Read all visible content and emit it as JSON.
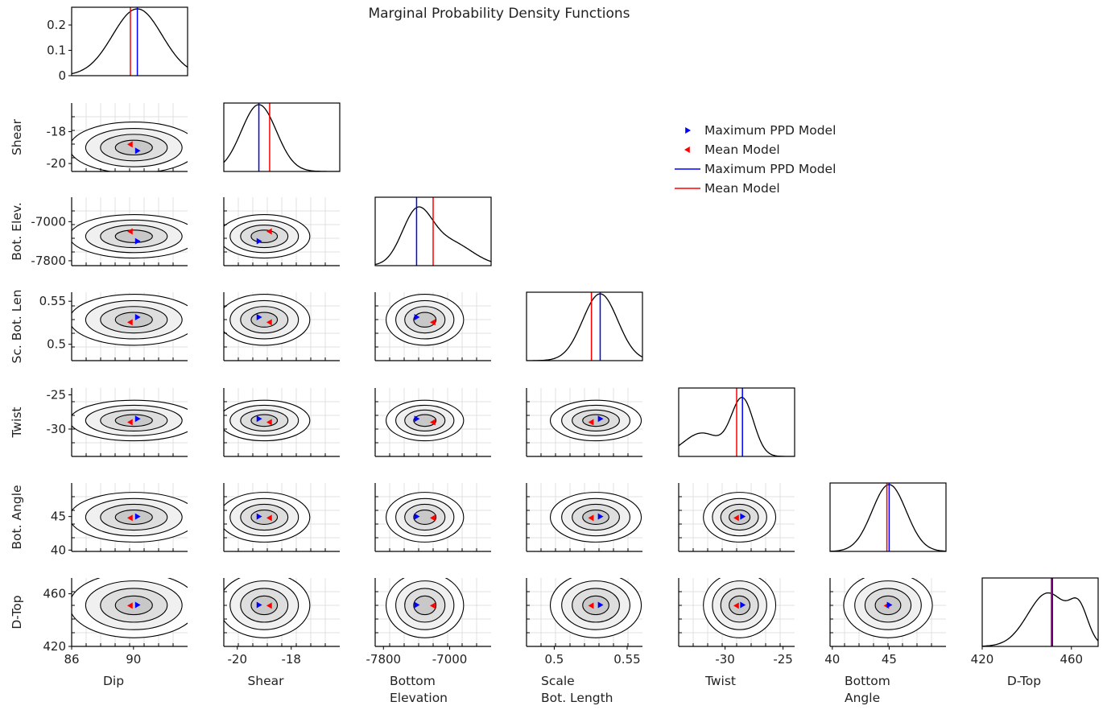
{
  "chart_data": {
    "type": "corner_plot",
    "title": "Marginal Probability Density Functions",
    "colors": {
      "max_ppd": "#0000ff",
      "mean": "#ff0000",
      "line": "#000000",
      "grid": "#d9d9d9"
    },
    "parameters": [
      {
        "key": "dip",
        "xlabel": [
          "Dip"
        ],
        "ylabel": "",
        "range": [
          86,
          93.5
        ],
        "xticks": [
          86,
          90
        ],
        "xtick_labels": [
          "86",
          "90"
        ],
        "max_ppd": 90.25,
        "mean": 89.8,
        "std": 1.6
      },
      {
        "key": "shear",
        "xlabel": [
          "Shear"
        ],
        "ylabel": "Shear",
        "range": [
          -20.5,
          -16.2
        ],
        "xticks": [
          -20,
          -18
        ],
        "xtick_labels": [
          "-20",
          "-18"
        ],
        "yticks": [
          -18,
          -20
        ],
        "ytick_labels": [
          "-18",
          "-20"
        ],
        "max_ppd": -19.2,
        "mean": -18.8,
        "std": 0.65
      },
      {
        "key": "bottom_elevation",
        "xlabel": [
          "Bottom",
          "Elevation"
        ],
        "ylabel": "Bot. Elev.",
        "range": [
          -7900,
          -6500
        ],
        "xticks": [
          -7800,
          -7000
        ],
        "xtick_labels": [
          "-7800",
          "-7000"
        ],
        "yticks": [
          -7000,
          -7800
        ],
        "ytick_labels": [
          "-7000",
          "-7800"
        ],
        "max_ppd": -7400,
        "mean": -7200,
        "std": 180
      },
      {
        "key": "scale_bottom_length",
        "xlabel": [
          "Scale",
          "Bot. Length"
        ],
        "ylabel": "Sc. Bot. Len",
        "range": [
          0.481,
          0.5605
        ],
        "xticks": [
          0.5,
          0.55
        ],
        "xtick_labels": [
          "0.5",
          "0.55"
        ],
        "yticks": [
          0.55,
          0.5
        ],
        "ytick_labels": [
          "0.55",
          "0.5"
        ],
        "max_ppd": 0.5315,
        "mean": 0.5255,
        "std": 0.012
      },
      {
        "key": "twist",
        "xlabel": [
          "Twist"
        ],
        "ylabel": "Twist",
        "range": [
          -34,
          -24
        ],
        "xticks": [
          -30,
          -25
        ],
        "xtick_labels": [
          "-30",
          "-25"
        ],
        "yticks": [
          -25,
          -30
        ],
        "ytick_labels": [
          "-25",
          "-30"
        ],
        "max_ppd": -28.5,
        "mean": -29,
        "std": 1.2
      },
      {
        "key": "bottom_angle",
        "xlabel": [
          "Bottom",
          "Angle"
        ],
        "ylabel": "Bot. Angle",
        "range": [
          39.8,
          50
        ],
        "xticks": [
          40,
          45
        ],
        "xtick_labels": [
          "40",
          "45"
        ],
        "yticks": [
          45,
          40
        ],
        "ytick_labels": [
          "45",
          "40"
        ],
        "max_ppd": 45,
        "mean": 44.8,
        "std": 1.5
      },
      {
        "key": "d_top",
        "xlabel": [
          "D-Top"
        ],
        "ylabel": "D-Top",
        "range": [
          420,
          472
        ],
        "xticks": [
          420,
          460
        ],
        "xtick_labels": [
          "420",
          "460"
        ],
        "yticks": [
          460,
          420
        ],
        "ytick_labels": [
          "460",
          "420"
        ],
        "max_ppd": 451.5,
        "mean": 451,
        "std": 10
      }
    ],
    "diagonal_yaxis": {
      "panel": 0,
      "ylim": [
        0,
        0.27
      ],
      "yticks": [
        0,
        0.1,
        0.2
      ],
      "ytick_labels": [
        "0",
        "0.1",
        "0.2"
      ]
    },
    "legend": {
      "position": "upper-right",
      "entries": [
        {
          "label": "Maximum PPD Model",
          "marker": "triangle-right",
          "color": "#0000ff"
        },
        {
          "label": "Mean Model",
          "marker": "triangle-left",
          "color": "#ff0000"
        },
        {
          "label": "Maximum PPD Model",
          "marker": "line",
          "color": "#0000ff"
        },
        {
          "label": "Mean Model",
          "marker": "line",
          "color": "#ff0000"
        }
      ]
    },
    "contour_levels": 4,
    "grid": true
  }
}
